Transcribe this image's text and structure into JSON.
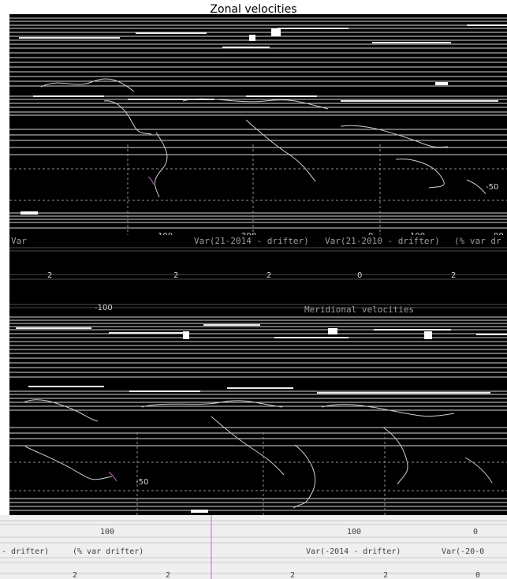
{
  "figure": {
    "title": "Zonal velocities"
  },
  "top_panel": {
    "contour_label": "-50",
    "bottom_ticks": [
      "100",
      "200",
      "0",
      "100",
      "00"
    ],
    "labels": {
      "left": "Var",
      "center": "Var(21-2014 - drifter)",
      "mid": "Var(21-2010 - drifter)",
      "right": "(% var dr"
    }
  },
  "middle_panel": {
    "ticks": [
      "2",
      "2",
      "2",
      "0",
      "2"
    ],
    "subtitle": "Meridional velocities",
    "corner_label": "-100"
  },
  "bottom_panel": {
    "contour_label": "-50",
    "lower_ticks": [
      "100",
      "100",
      "0"
    ],
    "labels": {
      "left": "- drifter)",
      "left2": "(% var drifter)",
      "right": "Var(-2014 - drifter)",
      "right2": "Var(-20-0"
    },
    "bottom_ticks": [
      "2",
      "2",
      "2",
      "2",
      "0"
    ]
  },
  "colors": {
    "background": "#000000",
    "outline": "#d8d8d8",
    "accent_magenta": "#d060d0",
    "highlight": "#ffffff"
  }
}
